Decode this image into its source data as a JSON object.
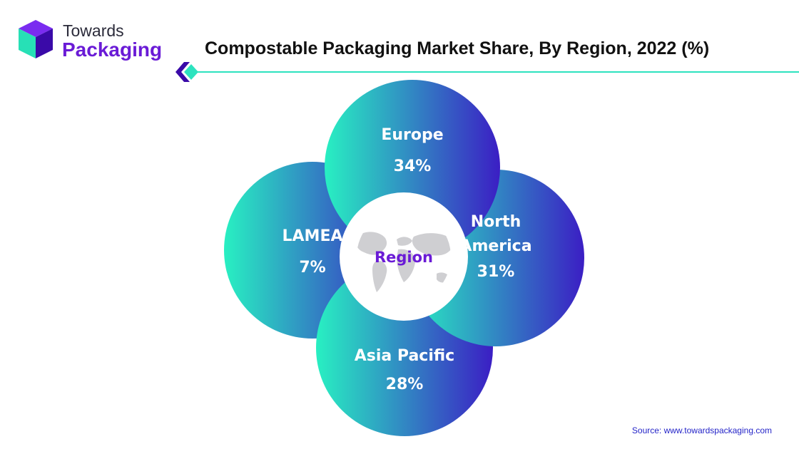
{
  "brand": {
    "top": "Towards",
    "bottom": "Packaging"
  },
  "title": "Compostable Packaging Market Share, By Region, 2022 (%)",
  "source": "Source: www.towardspackaging.com",
  "colors": {
    "gradient_start": "#28f0c2",
    "gradient_end": "#3b1ec4",
    "brand_purple": "#6a1bd6",
    "accent_teal": "#2de3bf"
  },
  "chart_data": {
    "type": "pie",
    "center_label": "Region",
    "categories": [
      "Europe",
      "North America",
      "Asia Pacific",
      "LAMEA"
    ],
    "values": [
      34,
      31,
      28,
      7
    ],
    "value_labels": [
      "34%",
      "31%",
      "28%",
      "7%"
    ],
    "unit": "%"
  }
}
